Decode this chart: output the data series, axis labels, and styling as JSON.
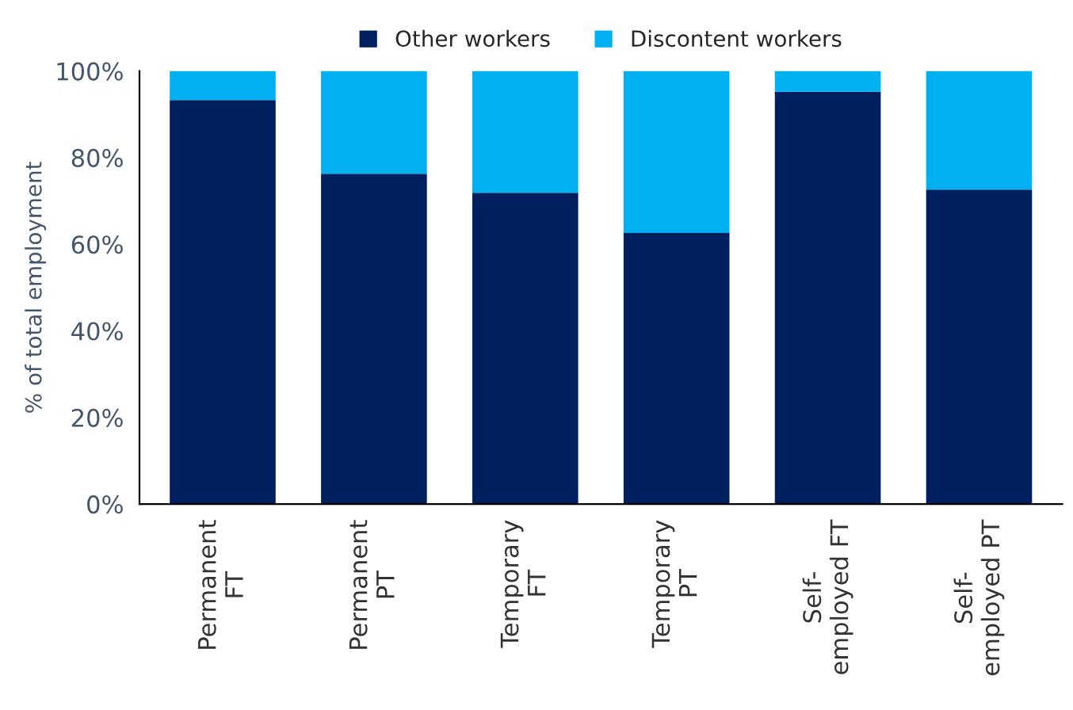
{
  "chart_data": {
    "type": "bar",
    "stacked": true,
    "ylabel": "% of total employment",
    "categories": [
      "Permanent\nFT",
      "Permanent\nPT",
      "Temporary\nFT",
      "Temporary\nPT",
      "Self-\nemployed FT",
      "Self-\nemployed PT"
    ],
    "series": [
      {
        "name": "Other workers",
        "color": "#001f5f",
        "values": [
          93.3,
          76.3,
          71.9,
          62.6,
          95.2,
          72.6
        ]
      },
      {
        "name": "Discontent workers",
        "color": "#00b0f0",
        "values": [
          6.7,
          23.7,
          28.1,
          37.4,
          4.8,
          27.4
        ]
      }
    ],
    "ylim": [
      0,
      100
    ],
    "yticks": [
      {
        "value": 0,
        "label": "0%"
      },
      {
        "value": 20,
        "label": "20%"
      },
      {
        "value": 40,
        "label": "40%"
      },
      {
        "value": 60,
        "label": "60%"
      },
      {
        "value": 80,
        "label": "80%"
      },
      {
        "value": 100,
        "label": "100%"
      }
    ],
    "legend": "top",
    "grid": false
  }
}
